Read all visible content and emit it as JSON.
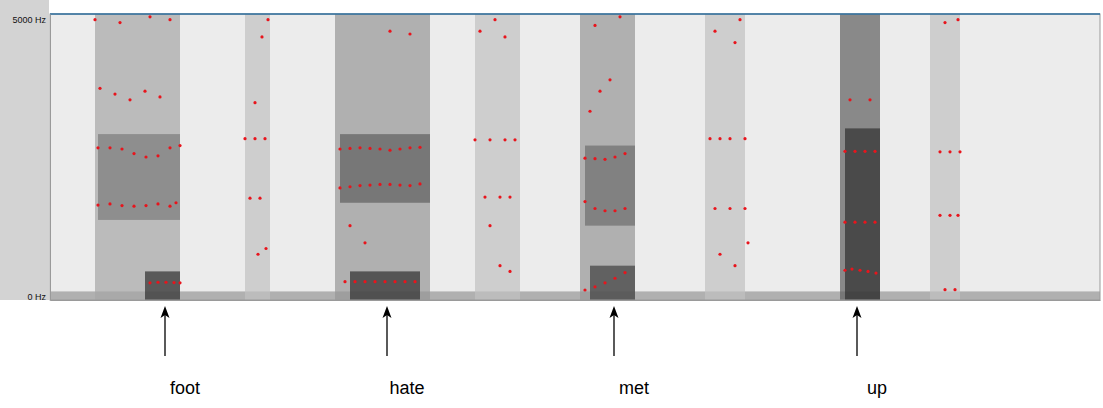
{
  "chart_data": {
    "type": "spectrogram",
    "xlim": [
      0,
      2.1
    ],
    "ylim": [
      0,
      5000
    ],
    "yticks": [
      {
        "value": 0,
        "label": "0 Hz"
      },
      {
        "value": 5000,
        "label": "5000 Hz"
      }
    ],
    "tick_labels": "y",
    "energy": [
      {
        "start": 0,
        "end": 2.1,
        "low": 0,
        "high": 150,
        "level": 0.5
      },
      {
        "start": 0.09,
        "end": 0.26,
        "low": 0,
        "high": 5000,
        "level": 0.45
      },
      {
        "start": 0.096,
        "end": 0.26,
        "low": 1400,
        "high": 2900,
        "level": 0.6
      },
      {
        "start": 0.19,
        "end": 0.26,
        "low": 0,
        "high": 500,
        "level": 0.85
      },
      {
        "start": 0.39,
        "end": 0.44,
        "low": 0,
        "high": 5000,
        "level": 0.35
      },
      {
        "start": 0.57,
        "end": 0.76,
        "low": 0,
        "high": 5000,
        "level": 0.5
      },
      {
        "start": 0.58,
        "end": 0.76,
        "low": 1700,
        "high": 2900,
        "level": 0.7
      },
      {
        "start": 0.6,
        "end": 0.74,
        "low": 0,
        "high": 500,
        "level": 0.85
      },
      {
        "start": 0.85,
        "end": 0.94,
        "low": 0,
        "high": 5000,
        "level": 0.35
      },
      {
        "start": 1.06,
        "end": 1.17,
        "low": 0,
        "high": 5000,
        "level": 0.5
      },
      {
        "start": 1.07,
        "end": 1.17,
        "low": 1300,
        "high": 2700,
        "level": 0.65
      },
      {
        "start": 1.08,
        "end": 1.17,
        "low": 0,
        "high": 600,
        "level": 0.8
      },
      {
        "start": 1.31,
        "end": 1.39,
        "low": 0,
        "high": 5000,
        "level": 0.35
      },
      {
        "start": 1.58,
        "end": 1.66,
        "low": 0,
        "high": 5000,
        "level": 0.7
      },
      {
        "start": 1.59,
        "end": 1.66,
        "low": 0,
        "high": 3000,
        "level": 0.85
      },
      {
        "start": 1.76,
        "end": 1.82,
        "low": 0,
        "high": 5000,
        "level": 0.35
      }
    ],
    "series": [
      {
        "type": "scatter",
        "color": "#e8141c",
        "marker": "dot",
        "x": [
          0.2,
          0.216,
          0.232,
          0.248,
          0.26,
          0.096,
          0.12,
          0.144,
          0.168,
          0.192,
          0.216,
          0.24,
          0.252,
          0.096,
          0.12,
          0.144,
          0.168,
          0.192,
          0.216,
          0.24,
          0.26,
          0.1,
          0.13,
          0.16,
          0.19,
          0.22,
          0.09,
          0.14,
          0.2,
          0.24,
          0.39,
          0.41,
          0.43,
          0.4,
          0.42,
          0.41,
          0.424,
          0.436,
          0.416,
          0.432,
          0.59,
          0.61,
          0.63,
          0.65,
          0.67,
          0.69,
          0.71,
          0.73,
          0.58,
          0.6,
          0.62,
          0.64,
          0.66,
          0.68,
          0.7,
          0.72,
          0.74,
          0.58,
          0.6,
          0.62,
          0.64,
          0.66,
          0.68,
          0.7,
          0.72,
          0.74,
          0.68,
          0.72,
          0.6,
          0.63,
          0.85,
          0.88,
          0.91,
          0.93,
          0.87,
          0.9,
          0.92,
          0.86,
          0.89,
          0.91,
          0.88,
          0.9,
          0.92,
          1.07,
          1.09,
          1.11,
          1.13,
          1.15,
          1.07,
          1.09,
          1.11,
          1.13,
          1.15,
          1.07,
          1.09,
          1.11,
          1.13,
          1.15,
          1.08,
          1.1,
          1.12,
          1.09,
          1.14,
          1.32,
          1.34,
          1.36,
          1.39,
          1.33,
          1.36,
          1.39,
          1.33,
          1.37,
          1.38,
          1.34,
          1.37,
          1.396,
          1.59,
          1.604,
          1.62,
          1.636,
          1.652,
          1.59,
          1.61,
          1.63,
          1.65,
          1.59,
          1.61,
          1.63,
          1.65,
          1.6,
          1.64,
          1.78,
          1.8,
          1.82,
          1.78,
          1.8,
          1.816,
          1.79,
          1.816,
          1.79,
          1.81
        ],
        "values": [
          300,
          310,
          310,
          305,
          300,
          1660,
          1680,
          1650,
          1640,
          1650,
          1680,
          1640,
          1700,
          2660,
          2660,
          2640,
          2560,
          2500,
          2520,
          2660,
          2700,
          3700,
          3600,
          3500,
          3650,
          3550,
          4900,
          4850,
          4950,
          4900,
          2820,
          2820,
          2820,
          1780,
          1780,
          3450,
          4600,
          4900,
          800,
          900,
          320,
          320,
          320,
          320,
          320,
          320,
          320,
          320,
          1960,
          1980,
          2000,
          2010,
          2020,
          2020,
          2010,
          2000,
          2030,
          2640,
          2650,
          2660,
          2650,
          2640,
          2620,
          2640,
          2660,
          2670,
          4700,
          4650,
          1300,
          1000,
          2800,
          2800,
          2800,
          2800,
          1800,
          1800,
          1800,
          4700,
          4900,
          4600,
          1300,
          600,
          500,
          175,
          230,
          300,
          380,
          480,
          1720,
          1600,
          1560,
          1560,
          1600,
          2480,
          2470,
          2460,
          2500,
          2560,
          3300,
          3650,
          3850,
          4800,
          4950,
          2820,
          2820,
          2820,
          2820,
          1600,
          1600,
          1600,
          4700,
          4500,
          4900,
          800,
          600,
          1000,
          520,
          540,
          520,
          500,
          470,
          1360,
          1360,
          1360,
          1360,
          2600,
          2600,
          2600,
          2600,
          3500,
          3500,
          2590,
          2590,
          2590,
          1480,
          1480,
          1480,
          4850,
          4900,
          180,
          180
        ]
      }
    ],
    "annotations": [
      {
        "x": 0.23,
        "text": "foot"
      },
      {
        "x": 0.674,
        "text": "hate"
      },
      {
        "x": 1.128,
        "text": "met"
      },
      {
        "x": 1.614,
        "text": "up"
      }
    ]
  }
}
